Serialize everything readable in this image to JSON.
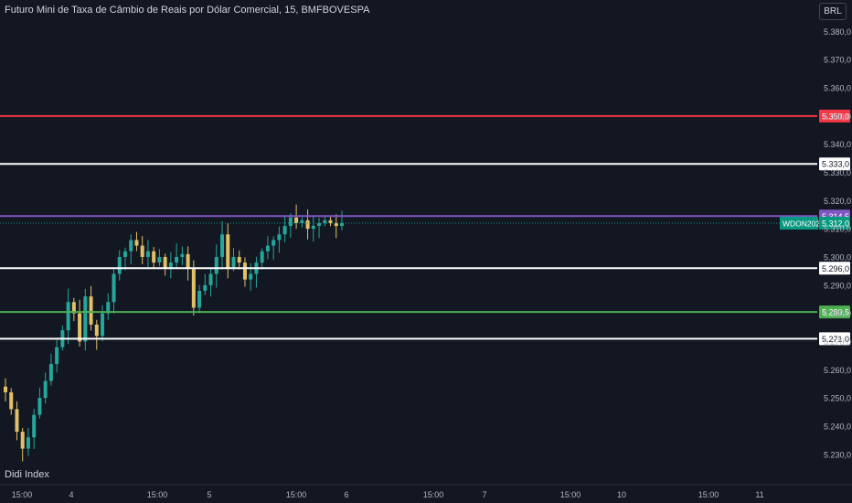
{
  "header": {
    "title": "Futuro Mini de Taxa de Câmbio de Reais por Dólar Comercial, 15, BMFBOVESPA",
    "currency_button": "BRL"
  },
  "indicator_label": "Didi Index",
  "colors": {
    "background": "#131722",
    "up_candle": "#26a69a",
    "down_candle": "#e0c068",
    "red_level": "#f23645",
    "white_level": "#ffffff",
    "purple_level": "#7e57c2",
    "green_level": "#4caf50",
    "last_price": "#089981"
  },
  "chart_data": {
    "type": "candlestick",
    "symbol": "WDON2024",
    "y_ticks": [
      "5.380,0",
      "5.370,0",
      "5.360,0",
      "5.350,0",
      "5.340,0",
      "5.330,0",
      "5.320,0",
      "5.310,0",
      "5.300,0",
      "5.290,0",
      "5.280,0",
      "5.270,0",
      "5.260,0",
      "5.250,0",
      "5.240,0",
      "5.230,0"
    ],
    "x_ticks": [
      "15:00",
      "4",
      "15:00",
      "5",
      "15:00",
      "6",
      "15:00",
      "7",
      "15:00",
      "10",
      "15:00",
      "11"
    ],
    "ylim": [
      5227,
      5384
    ],
    "horizontal_levels": [
      {
        "value": 5350.0,
        "label": "5.350,0",
        "color": "#f23645"
      },
      {
        "value": 5333.0,
        "label": "5.333,0",
        "color": "#ffffff"
      },
      {
        "value": 5314.5,
        "label": "5.314,5",
        "color": "#7e57c2"
      },
      {
        "value": 5296.0,
        "label": "5.296,0",
        "color": "#ffffff"
      },
      {
        "value": 5280.5,
        "label": "5.280,5",
        "color": "#4caf50"
      },
      {
        "value": 5271.0,
        "label": "5.271,0",
        "color": "#ffffff"
      }
    ],
    "last_price": {
      "value": 5312.0,
      "label": "5.312,0",
      "symbol": "WDON2024"
    },
    "close_path": [
      5252,
      5246,
      5238,
      5232,
      5236,
      5244,
      5250,
      5256,
      5262,
      5268,
      5274,
      5284,
      5280,
      5270,
      5286,
      5276,
      5272,
      5280,
      5284,
      5294,
      5300,
      5302,
      5306,
      5304,
      5300,
      5302,
      5298,
      5300,
      5296,
      5298,
      5300,
      5301,
      5296,
      5282,
      5288,
      5290,
      5294,
      5300,
      5308,
      5296,
      5300,
      5298,
      5292,
      5294,
      5298,
      5302,
      5304,
      5306,
      5308,
      5311,
      5314,
      5312,
      5313,
      5310,
      5311,
      5312,
      5313,
      5312,
      5311,
      5312
    ]
  }
}
